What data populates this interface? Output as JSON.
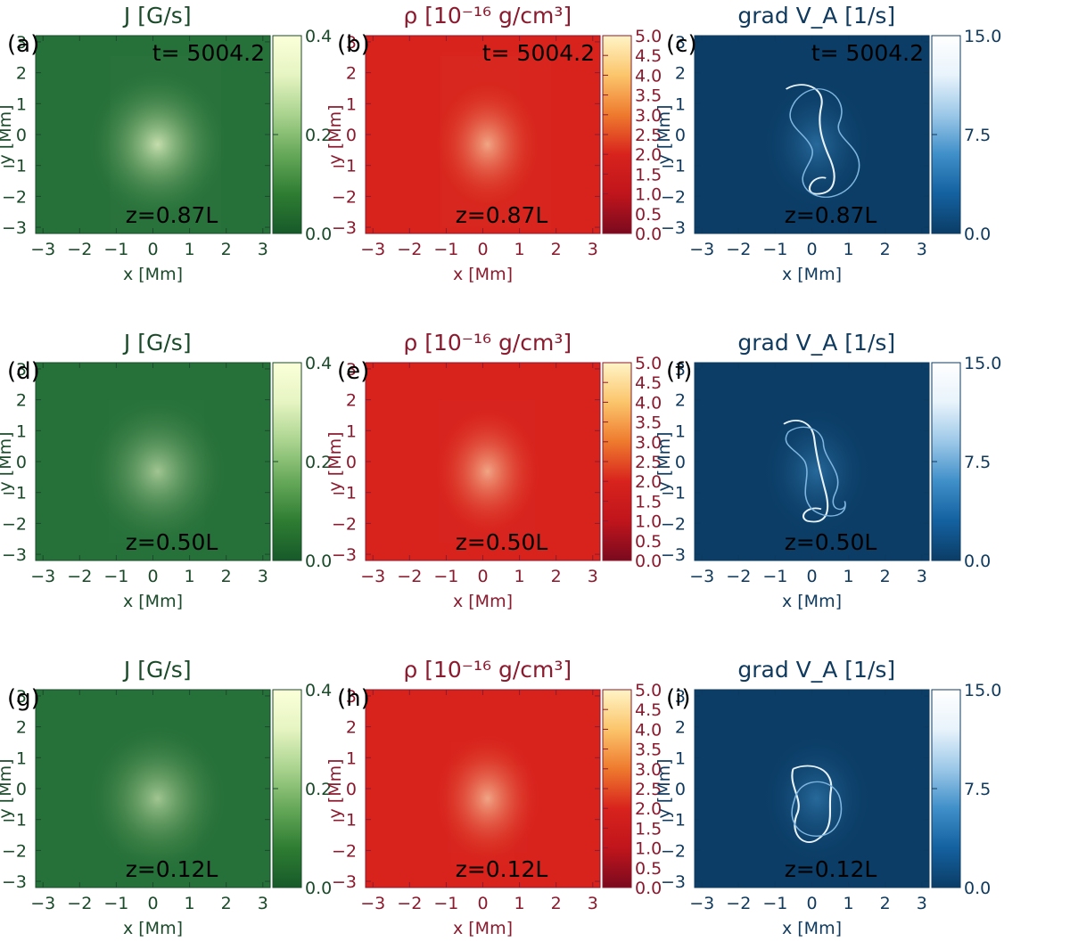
{
  "time_label": "t= 5004.2 s",
  "colors": {
    "J": "#1a4a2a",
    "rho": "#8b1a2e",
    "va": "#0f3a5e",
    "J_map": [
      "#175a2a",
      "#2e7d32",
      "#66a85a",
      "#a9d38e",
      "#e6f4c2",
      "#fbffd9"
    ],
    "rho_map": [
      "#7a0a1e",
      "#c0151c",
      "#d8231d",
      "#ee7a2e",
      "#fbc56b",
      "#fff4c6"
    ],
    "va_map": [
      "#0b3d66",
      "#1461a0",
      "#3f8fc9",
      "#9cc8e8",
      "#e8f3fb",
      "#ffffff"
    ],
    "J_bg": "#26703a",
    "rho_bg": "#d8231d",
    "va_bg": "#0b3d66"
  },
  "chart_data": [
    {
      "type": "heatmap",
      "panel_label": "(a)",
      "title": "J [G/s]",
      "annotation": "z=0.87L",
      "show_time": true,
      "xlabel": "x [Mm]",
      "ylabel": "y [Mm]",
      "xlim": [
        -3.2,
        3.2
      ],
      "ylim": [
        -3.2,
        3.2
      ],
      "xticks": [
        "-3",
        "-2",
        "-1",
        "0",
        "1",
        "2",
        "3"
      ],
      "yticks": [
        "-3",
        "-2",
        "-1",
        "0",
        "1",
        "2",
        "3"
      ],
      "colorbar_ticks": [
        "0.0",
        "0.2",
        "0.4"
      ],
      "colorbar_range": [
        0,
        0.4
      ]
    },
    {
      "type": "heatmap",
      "panel_label": "(b)",
      "title": "ρ [10⁻¹⁶ g/cm³]",
      "annotation": "z=0.87L",
      "show_time": true,
      "xlabel": "x [Mm]",
      "ylabel": "y [Mm]",
      "xlim": [
        -3.2,
        3.2
      ],
      "ylim": [
        -3.2,
        3.2
      ],
      "xticks": [
        "-3",
        "-2",
        "-1",
        "0",
        "1",
        "2",
        "3"
      ],
      "yticks": [
        "-3",
        "-2",
        "-1",
        "0",
        "1",
        "2",
        "3"
      ],
      "colorbar_ticks": [
        "0.0",
        "0.5",
        "1.0",
        "1.5",
        "2.0",
        "2.5",
        "3.0",
        "3.5",
        "4.0",
        "4.5",
        "5.0"
      ],
      "colorbar_range": [
        0,
        5
      ]
    },
    {
      "type": "heatmap",
      "panel_label": "(c)",
      "title": "grad V_A [1/s]",
      "annotation": "z=0.87L",
      "show_time": true,
      "xlabel": "x [Mm]",
      "ylabel": "y [Mm]",
      "xlim": [
        -3.2,
        3.2
      ],
      "ylim": [
        -3.2,
        3.2
      ],
      "xticks": [
        "-3",
        "-2",
        "-1",
        "0",
        "1",
        "2",
        "3"
      ],
      "yticks": [
        "-3",
        "-2",
        "-1",
        "0",
        "1",
        "2",
        "3"
      ],
      "colorbar_ticks": [
        "0.0",
        "7.5",
        "15.0"
      ],
      "colorbar_range": [
        0,
        15
      ]
    },
    {
      "type": "heatmap",
      "panel_label": "(d)",
      "title": "J [G/s]",
      "annotation": "z=0.50L",
      "show_time": false,
      "xlabel": "x [Mm]",
      "ylabel": "y [Mm]",
      "xlim": [
        -3.2,
        3.2
      ],
      "ylim": [
        -3.2,
        3.2
      ],
      "xticks": [
        "-3",
        "-2",
        "-1",
        "0",
        "1",
        "2",
        "3"
      ],
      "yticks": [
        "-3",
        "-2",
        "-1",
        "0",
        "1",
        "2",
        "3"
      ],
      "colorbar_ticks": [
        "0.0",
        "0.2",
        "0.4"
      ],
      "colorbar_range": [
        0,
        0.4
      ]
    },
    {
      "type": "heatmap",
      "panel_label": "(e)",
      "title": "ρ [10⁻¹⁶ g/cm³]",
      "annotation": "z=0.50L",
      "show_time": false,
      "xlabel": "x [Mm]",
      "ylabel": "y [Mm]",
      "xlim": [
        -3.2,
        3.2
      ],
      "ylim": [
        -3.2,
        3.2
      ],
      "xticks": [
        "-3",
        "-2",
        "-1",
        "0",
        "1",
        "2",
        "3"
      ],
      "yticks": [
        "-3",
        "-2",
        "-1",
        "0",
        "1",
        "2",
        "3"
      ],
      "colorbar_ticks": [
        "0.0",
        "0.5",
        "1.0",
        "1.5",
        "2.0",
        "2.5",
        "3.0",
        "3.5",
        "4.0",
        "4.5",
        "5.0"
      ],
      "colorbar_range": [
        0,
        5
      ]
    },
    {
      "type": "heatmap",
      "panel_label": "(f)",
      "title": "grad V_A [1/s]",
      "annotation": "z=0.50L",
      "show_time": false,
      "xlabel": "x [Mm]",
      "ylabel": "y [Mm]",
      "xlim": [
        -3.2,
        3.2
      ],
      "ylim": [
        -3.2,
        3.2
      ],
      "xticks": [
        "-3",
        "-2",
        "-1",
        "0",
        "1",
        "2",
        "3"
      ],
      "yticks": [
        "-3",
        "-2",
        "-1",
        "0",
        "1",
        "2",
        "3"
      ],
      "colorbar_ticks": [
        "0.0",
        "7.5",
        "15.0"
      ],
      "colorbar_range": [
        0,
        15
      ]
    },
    {
      "type": "heatmap",
      "panel_label": "(g)",
      "title": "J [G/s]",
      "annotation": "z=0.12L",
      "show_time": false,
      "xlabel": "x [Mm]",
      "ylabel": "y [Mm]",
      "xlim": [
        -3.2,
        3.2
      ],
      "ylim": [
        -3.2,
        3.2
      ],
      "xticks": [
        "-3",
        "-2",
        "-1",
        "0",
        "1",
        "2",
        "3"
      ],
      "yticks": [
        "-3",
        "-2",
        "-1",
        "0",
        "1",
        "2",
        "3"
      ],
      "colorbar_ticks": [
        "0.0",
        "0.2",
        "0.4"
      ],
      "colorbar_range": [
        0,
        0.4
      ]
    },
    {
      "type": "heatmap",
      "panel_label": "(h)",
      "title": "ρ [10⁻¹⁶ g/cm³]",
      "annotation": "z=0.12L",
      "show_time": false,
      "xlabel": "x [Mm]",
      "ylabel": "y [Mm]",
      "xlim": [
        -3.2,
        3.2
      ],
      "ylim": [
        -3.2,
        3.2
      ],
      "xticks": [
        "-3",
        "-2",
        "-1",
        "0",
        "1",
        "2",
        "3"
      ],
      "yticks": [
        "-3",
        "-2",
        "-1",
        "0",
        "1",
        "2",
        "3"
      ],
      "colorbar_ticks": [
        "0.0",
        "0.5",
        "1.0",
        "1.5",
        "2.0",
        "2.5",
        "3.0",
        "3.5",
        "4.0",
        "4.5",
        "5.0"
      ],
      "colorbar_range": [
        0,
        5
      ]
    },
    {
      "type": "heatmap",
      "panel_label": "(i)",
      "title": "grad V_A [1/s]",
      "annotation": "z=0.12L",
      "show_time": false,
      "xlabel": "x [Mm]",
      "ylabel": "y [Mm]",
      "xlim": [
        -3.2,
        3.2
      ],
      "ylim": [
        -3.2,
        3.2
      ],
      "xticks": [
        "-3",
        "-2",
        "-1",
        "0",
        "1",
        "2",
        "3"
      ],
      "yticks": [
        "-3",
        "-2",
        "-1",
        "0",
        "1",
        "2",
        "3"
      ],
      "colorbar_ticks": [
        "0.0",
        "7.5",
        "15.0"
      ],
      "colorbar_range": [
        0,
        15
      ]
    }
  ]
}
